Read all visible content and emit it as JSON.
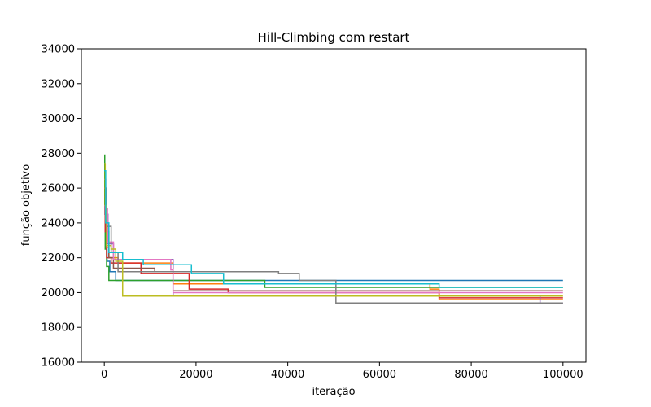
{
  "chart_data": {
    "type": "line",
    "title": "Hill-Climbing com restart",
    "xlabel": "iteração",
    "ylabel": "função objetivo",
    "xlim": [
      -5000,
      105000
    ],
    "ylim": [
      16000,
      34000
    ],
    "x_ticks": [
      0,
      20000,
      40000,
      60000,
      80000,
      100000
    ],
    "x_tick_labels": [
      "0",
      "20000",
      "40000",
      "60000",
      "80000",
      "100000"
    ],
    "y_ticks": [
      16000,
      18000,
      20000,
      22000,
      24000,
      26000,
      28000,
      30000,
      32000,
      34000
    ],
    "y_tick_labels": [
      "16000",
      "18000",
      "20000",
      "22000",
      "24000",
      "26000",
      "28000",
      "30000",
      "32000",
      "34000"
    ],
    "grid": false,
    "legend": "none",
    "series": [
      {
        "color": "#1f77b4",
        "x": [
          0,
          150,
          300,
          600,
          1200,
          2500,
          100000
        ],
        "y": [
          27000,
          24500,
          22800,
          21800,
          21200,
          20700,
          20700
        ]
      },
      {
        "color": "#ff7f0e",
        "x": [
          0,
          200,
          500,
          1000,
          3000,
          15000,
          33000,
          71000,
          73000,
          100000
        ],
        "y": [
          26500,
          24000,
          22600,
          22000,
          21700,
          20500,
          20500,
          20200,
          19600,
          19600
        ]
      },
      {
        "color": "#2ca02c",
        "x": [
          0,
          100,
          200,
          500,
          1000,
          33000,
          35000,
          100000
        ],
        "y": [
          27900,
          25000,
          22500,
          21500,
          20700,
          20700,
          20300,
          20300
        ]
      },
      {
        "color": "#d62728",
        "x": [
          0,
          200,
          500,
          1500,
          8000,
          18500,
          27000,
          73000,
          100000
        ],
        "y": [
          26000,
          23500,
          22000,
          21700,
          21100,
          20200,
          20000,
          19700,
          19700
        ]
      },
      {
        "color": "#9467bd",
        "x": [
          0,
          300,
          800,
          2000,
          15000,
          95000,
          100000
        ],
        "y": [
          26500,
          24500,
          22800,
          21900,
          19800,
          19400,
          19400
        ]
      },
      {
        "color": "#8c564b",
        "x": [
          0,
          400,
          1000,
          2000,
          11000,
          15000,
          71000,
          100000
        ],
        "y": [
          25500,
          23500,
          22000,
          21400,
          21200,
          20100,
          20100,
          20100
        ]
      },
      {
        "color": "#e377c2",
        "x": [
          0,
          300,
          700,
          2000,
          14500,
          15000,
          100000
        ],
        "y": [
          25000,
          24800,
          22900,
          21900,
          21300,
          20000,
          20000
        ]
      },
      {
        "color": "#7f7f7f",
        "x": [
          0,
          500,
          1500,
          3000,
          38000,
          42500,
          50500,
          100000
        ],
        "y": [
          26000,
          23800,
          22300,
          21200,
          21100,
          20700,
          19400,
          19400
        ]
      },
      {
        "color": "#bcbd22",
        "x": [
          0,
          200,
          500,
          1500,
          2500,
          4000,
          100000
        ],
        "y": [
          27400,
          25000,
          22700,
          22500,
          21800,
          19800,
          19800
        ]
      },
      {
        "color": "#17becf",
        "x": [
          0,
          300,
          1000,
          4000,
          8500,
          19000,
          26000,
          73000,
          100000
        ],
        "y": [
          27000,
          24000,
          22300,
          21900,
          21600,
          21100,
          20500,
          20300,
          20300
        ]
      }
    ]
  }
}
